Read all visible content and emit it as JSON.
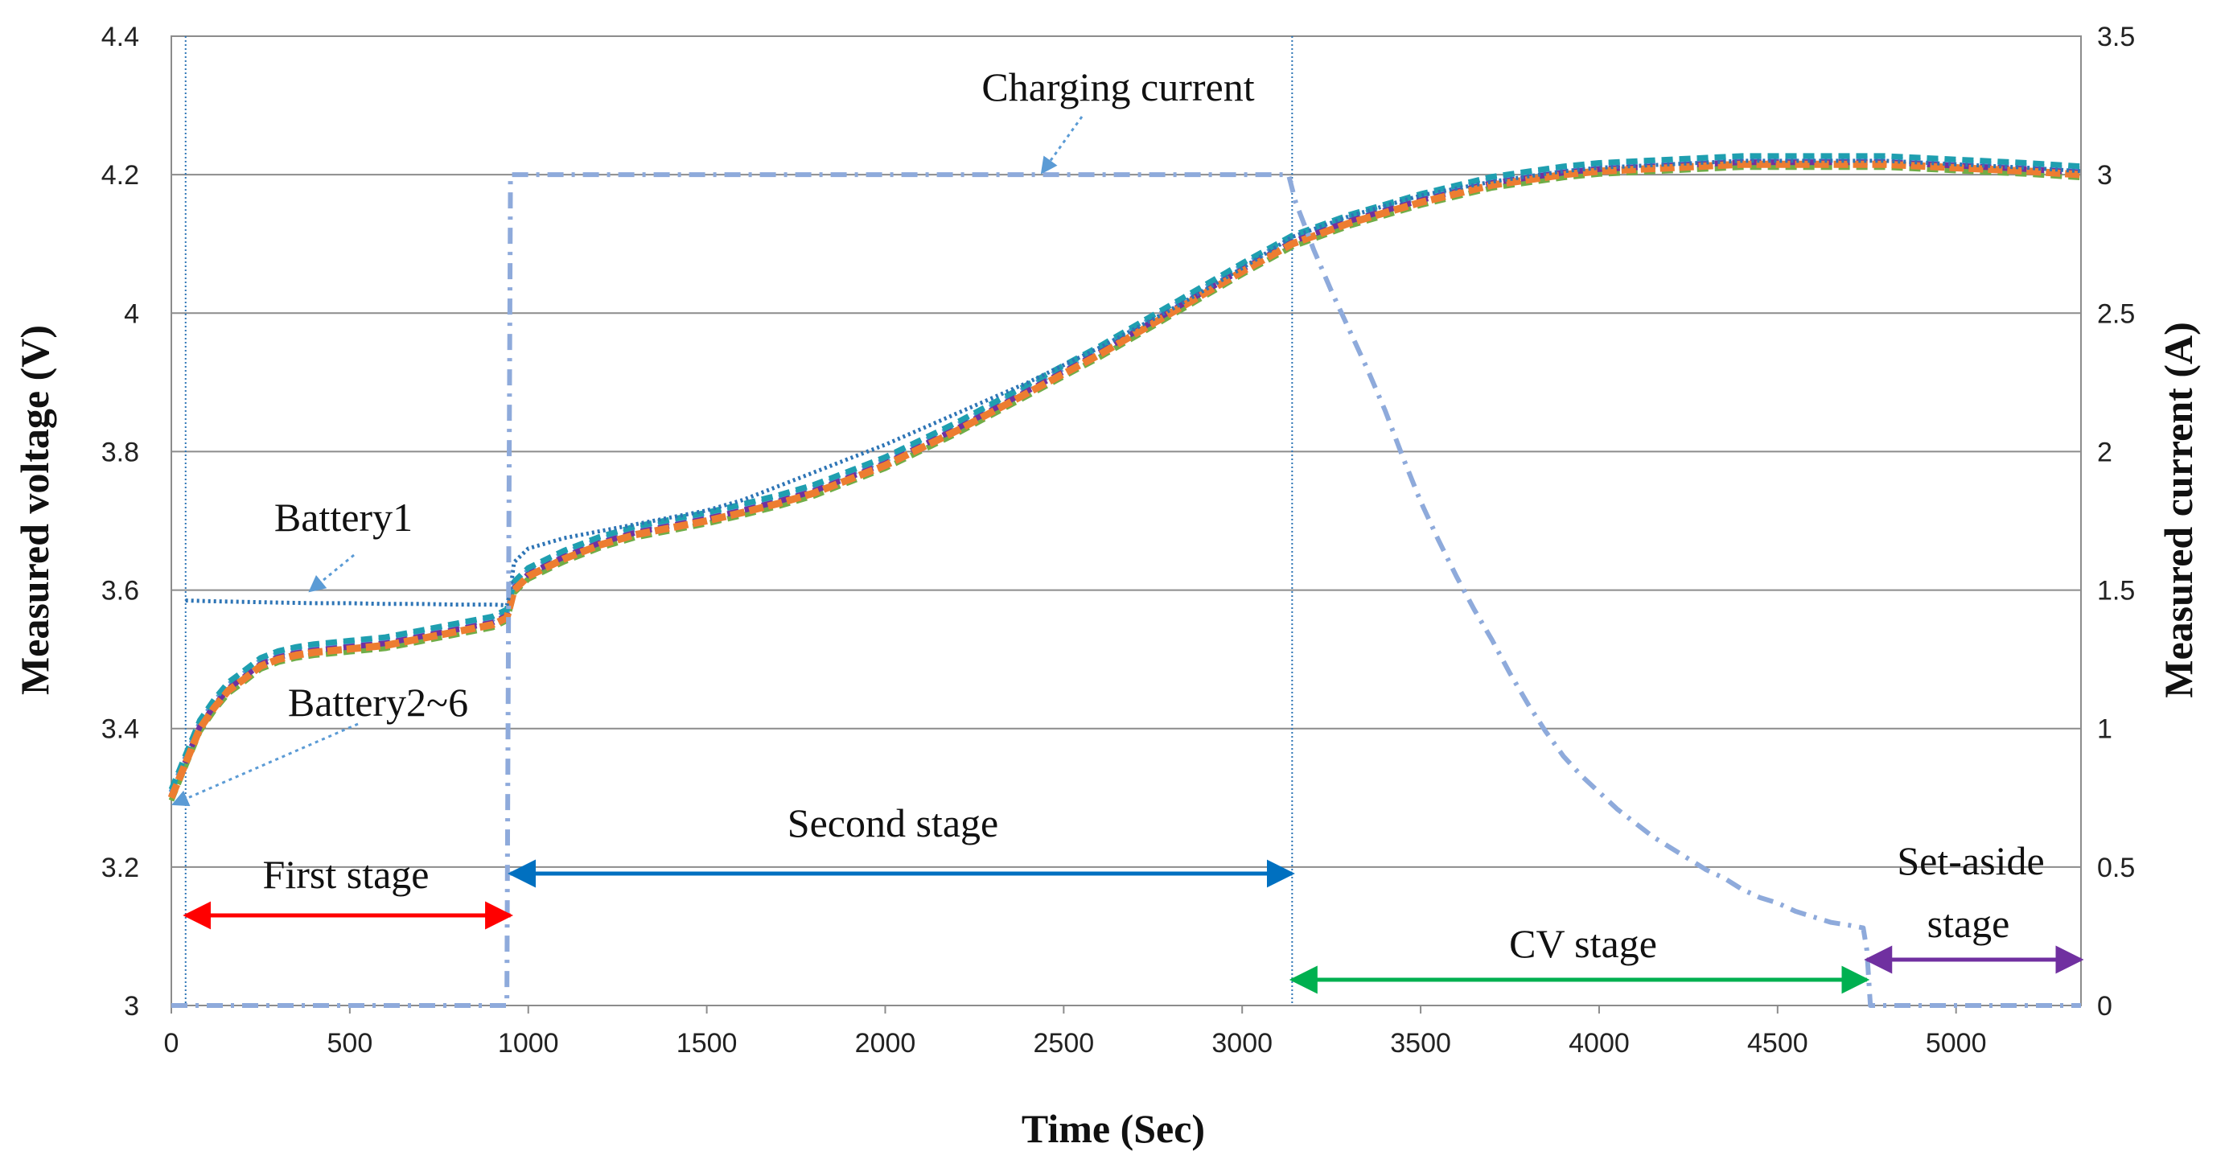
{
  "chart_data": {
    "type": "line",
    "title": "",
    "xlabel": "Time (Sec)",
    "ylabel_left": "Measured voltage (V)",
    "ylabel_right": "Measured current (A)",
    "xlim": [
      0,
      5350
    ],
    "ylim_left": [
      3.0,
      4.4
    ],
    "ylim_right": [
      0,
      3.5
    ],
    "x_ticks": [
      "0",
      "500",
      "1000",
      "1500",
      "2000",
      "2500",
      "3000",
      "3500",
      "4000",
      "4500",
      "5000"
    ],
    "y_left_ticks": [
      "3",
      "3.2",
      "3.4",
      "3.6",
      "3.8",
      "4",
      "4.2",
      "4.4"
    ],
    "y_right_ticks": [
      "0",
      "0.5",
      "1",
      "1.5",
      "2",
      "2.5",
      "3",
      "3.5"
    ],
    "grid": true,
    "series": [
      {
        "name": "Battery1",
        "axis": "left",
        "color": "#2e75b6",
        "x": [
          40,
          100,
          200,
          300,
          400,
          500,
          600,
          700,
          800,
          900,
          940,
          950,
          960,
          1000,
          1100,
          1200,
          1300,
          1400,
          1500,
          1600,
          1700,
          1800,
          1900,
          2000,
          2200,
          2400,
          2600,
          2800,
          3000,
          3140,
          3300,
          3500,
          3700,
          3900,
          4000,
          4200,
          4400,
          4600,
          4800,
          5000,
          5200,
          5350
        ],
        "values": [
          3.585,
          3.584,
          3.583,
          3.582,
          3.581,
          3.581,
          3.58,
          3.58,
          3.579,
          3.579,
          3.578,
          3.6,
          3.64,
          3.66,
          3.675,
          3.685,
          3.695,
          3.705,
          3.715,
          3.73,
          3.75,
          3.77,
          3.79,
          3.81,
          3.855,
          3.9,
          3.95,
          4.005,
          4.065,
          4.11,
          4.14,
          4.17,
          4.19,
          4.205,
          4.21,
          4.215,
          4.22,
          4.22,
          4.22,
          4.215,
          4.21,
          4.205
        ]
      },
      {
        "name": "Battery2~6",
        "axis": "left",
        "color": "#ed7d31",
        "x": [
          0,
          40,
          80,
          120,
          160,
          200,
          250,
          300,
          350,
          400,
          500,
          600,
          700,
          800,
          900,
          940,
          950,
          960,
          1000,
          1100,
          1200,
          1300,
          1400,
          1500,
          1600,
          1700,
          1800,
          1900,
          2000,
          2200,
          2400,
          2600,
          2800,
          3000,
          3140,
          3300,
          3500,
          3700,
          3900,
          4000,
          4200,
          4400,
          4600,
          4800,
          5000,
          5200,
          5350
        ],
        "values": [
          3.3,
          3.35,
          3.4,
          3.43,
          3.455,
          3.47,
          3.49,
          3.5,
          3.506,
          3.51,
          3.515,
          3.52,
          3.53,
          3.54,
          3.55,
          3.56,
          3.58,
          3.6,
          3.62,
          3.645,
          3.665,
          3.68,
          3.69,
          3.7,
          3.712,
          3.725,
          3.74,
          3.76,
          3.78,
          3.83,
          3.885,
          3.94,
          4.0,
          4.06,
          4.1,
          4.13,
          4.16,
          4.185,
          4.2,
          4.205,
          4.21,
          4.215,
          4.215,
          4.215,
          4.21,
          4.205,
          4.2
        ]
      },
      {
        "name": "Charging current",
        "axis": "right",
        "color": "#8eaadb",
        "x": [
          0,
          930,
          940,
          945,
          950,
          960,
          1000,
          1500,
          2000,
          2500,
          3000,
          3100,
          3130,
          3140,
          3150,
          3180,
          3200,
          3250,
          3300,
          3350,
          3400,
          3450,
          3500,
          3550,
          3600,
          3650,
          3700,
          3750,
          3800,
          3850,
          3900,
          3950,
          4000,
          4050,
          4100,
          4150,
          4200,
          4250,
          4300,
          4350,
          4400,
          4450,
          4500,
          4550,
          4600,
          4650,
          4700,
          4740,
          4750,
          4760,
          4800,
          5000,
          5350
        ],
        "values": [
          0,
          0,
          0,
          1.5,
          3.0,
          3.0,
          3.0,
          3.0,
          3.0,
          3.0,
          3.0,
          3.0,
          3.0,
          2.95,
          2.9,
          2.8,
          2.73,
          2.58,
          2.44,
          2.3,
          2.15,
          1.98,
          1.82,
          1.68,
          1.55,
          1.43,
          1.32,
          1.2,
          1.09,
          0.99,
          0.9,
          0.83,
          0.77,
          0.71,
          0.66,
          0.61,
          0.57,
          0.53,
          0.49,
          0.46,
          0.42,
          0.39,
          0.37,
          0.34,
          0.32,
          0.3,
          0.29,
          0.28,
          0.2,
          0.0,
          0.0,
          0.0,
          0.0
        ]
      }
    ],
    "annotations": [
      {
        "text": "Charging current"
      },
      {
        "text": "Battery1"
      },
      {
        "text": "Battery2~6"
      },
      {
        "text": "First stage"
      },
      {
        "text": "Second stage"
      },
      {
        "text": "CV stage"
      },
      {
        "text": "Set-aside"
      },
      {
        "text": "stage"
      }
    ],
    "stages": [
      {
        "name": "First stage",
        "from": 40,
        "to": 950,
        "color": "#ff0000"
      },
      {
        "name": "Second stage",
        "from": 950,
        "to": 3140,
        "color": "#0070c0"
      },
      {
        "name": "CV stage",
        "from": 3140,
        "to": 4750,
        "color": "#00b050"
      },
      {
        "name": "Set-aside stage",
        "from": 4750,
        "to": 5350,
        "color": "#7030a0"
      }
    ],
    "vertical_markers": [
      40,
      3140
    ]
  }
}
